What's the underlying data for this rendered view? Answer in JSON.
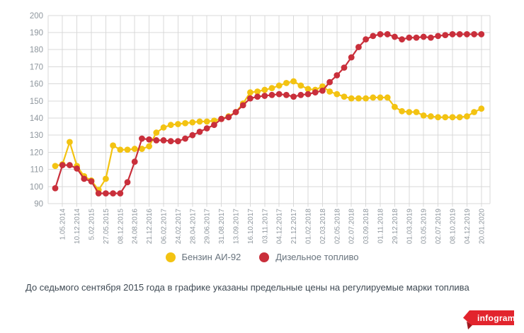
{
  "chart_data": {
    "type": "line",
    "title": "",
    "marker": "circle",
    "grid": true,
    "legend_position": "bottom",
    "y_axis": {
      "min": 90,
      "max": 200,
      "step": 10,
      "ticks": [
        90,
        100,
        110,
        120,
        130,
        140,
        150,
        160,
        170,
        180,
        190,
        200
      ]
    },
    "x_labels": [
      "1.05.2014",
      "10.12.2014",
      "5.02.2015",
      "27.05.2015",
      "08.12.2015",
      "24.08.2016",
      "21.12.2016",
      "06.02.2017",
      "24.02.2017",
      "28.04.2017",
      "29.06.2017",
      "31.08.2017",
      "13.09.2017",
      "16.10.2017",
      "03.11.2017",
      "04.12.2017",
      "21.12.2017",
      "01.02.2018",
      "02.03.2018",
      "02.05.2018",
      "02.07.2018",
      "03.09.2018",
      "01.11.2018",
      "29.12.2018",
      "01.03.2019",
      "03.05.2019",
      "02.07.2019",
      "08.10.2019",
      "04.12.2019",
      "20.01.2020"
    ],
    "points_per_label_interval": 2,
    "first_labeled_point_index": 1,
    "series": [
      {
        "name": "Бензин АИ-92",
        "color": "#f3c312",
        "values": [
          112,
          113,
          126,
          112,
          106,
          103.5,
          98,
          104.5,
          124,
          121.5,
          121.5,
          122,
          122,
          123.5,
          131.5,
          134.5,
          136,
          136.5,
          137,
          137.5,
          138,
          138,
          138.5,
          139.5,
          141,
          143.5,
          148.5,
          155,
          155.5,
          156.5,
          157.5,
          159,
          160.5,
          161.5,
          159,
          157,
          156.5,
          158.5,
          155.5,
          154,
          152.5,
          151.5,
          151.5,
          151.5,
          152,
          152,
          152,
          146.5,
          144,
          143.5,
          143.5,
          141.5,
          141,
          140.5,
          140.5,
          140.5,
          140.5,
          141,
          143.5,
          145.5
        ]
      },
      {
        "name": "Дизельное топливо",
        "color": "#c92f3b",
        "values": [
          99,
          112.5,
          112.5,
          110.5,
          104.5,
          103,
          96,
          96,
          96,
          96,
          102.5,
          114.5,
          128,
          127.5,
          127,
          127,
          126.5,
          126.5,
          128,
          130,
          132,
          134,
          136,
          139.5,
          140.5,
          143.5,
          147.5,
          151.5,
          152.5,
          153,
          153.5,
          154,
          153.5,
          152.5,
          153.5,
          154,
          155,
          156,
          161,
          165,
          169.5,
          175.5,
          181.5,
          186,
          188,
          189,
          189,
          187.5,
          186,
          187,
          187,
          187.5,
          187,
          188,
          188.5,
          189,
          189,
          189,
          189,
          189
        ]
      }
    ]
  },
  "caption": "До седьмого сентября 2015 года в графике указаны предельные цены на регулируемые марки топлива",
  "logo": {
    "text": "infogram",
    "background": "#e2242d",
    "fold": "#9e181f"
  },
  "colors": {
    "grid": "#d9d9d9",
    "axis_text": "#8f979e",
    "legend_text": "#68737d",
    "caption_text": "#3f4a54"
  }
}
